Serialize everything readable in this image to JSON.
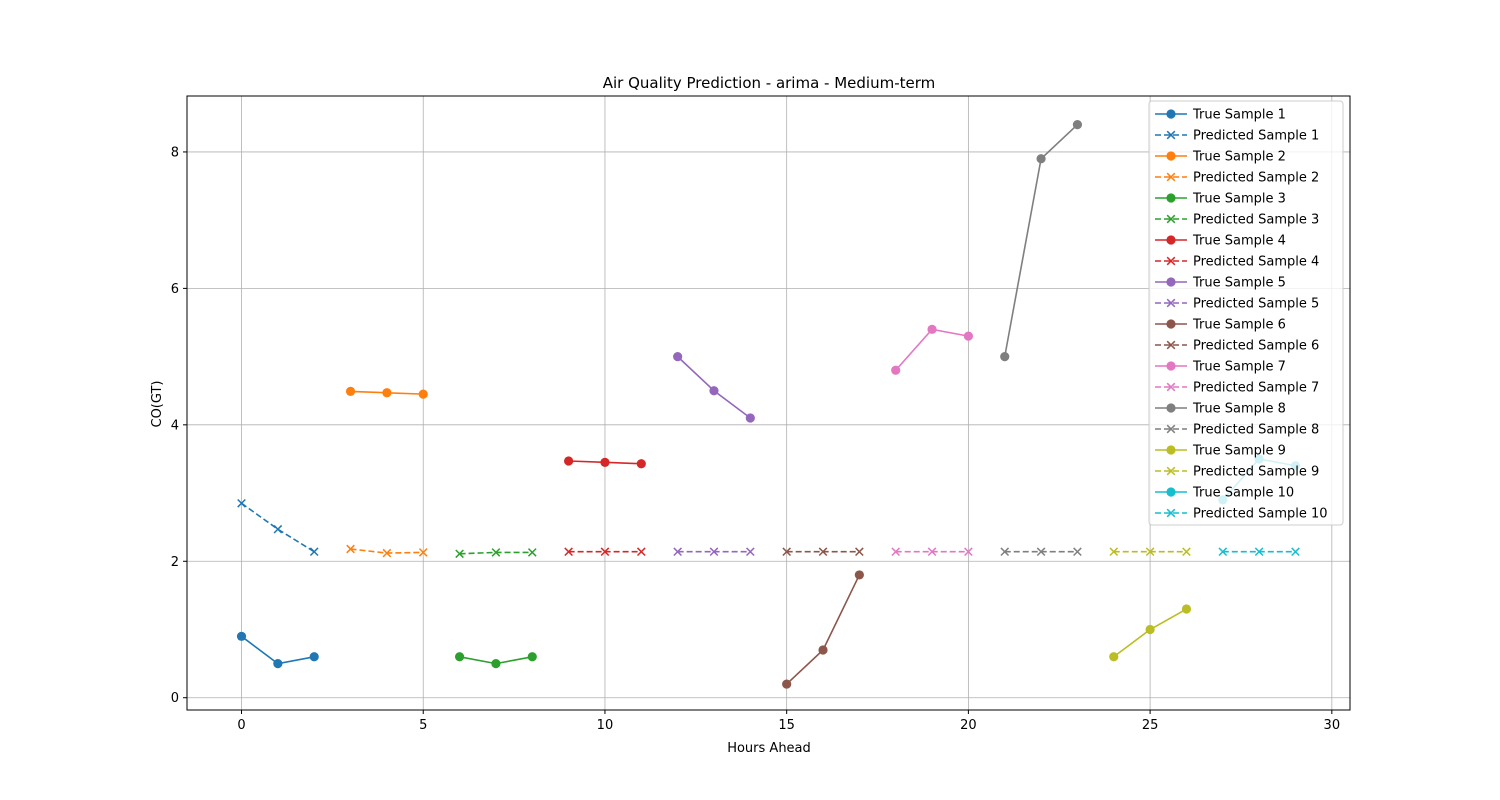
{
  "chart_data": {
    "type": "line",
    "title": "Air Quality Prediction - arima - Medium-term",
    "xlabel": "Hours Ahead",
    "ylabel": "CO(GT)",
    "xlim": [
      -1.5,
      30.5
    ],
    "ylim": [
      -0.18,
      8.82
    ],
    "xticks": [
      0,
      5,
      10,
      15,
      20,
      25,
      30
    ],
    "yticks": [
      0,
      2,
      4,
      6,
      8
    ],
    "grid": true,
    "legend_position": "top-right",
    "series": [
      {
        "name": "True Sample 1",
        "kind": "true",
        "color": "#1f77b4",
        "x": [
          0,
          1,
          2
        ],
        "y": [
          0.9,
          0.5,
          0.6
        ]
      },
      {
        "name": "Predicted Sample 1",
        "kind": "pred",
        "color": "#1f77b4",
        "x": [
          0,
          1,
          2
        ],
        "y": [
          2.85,
          2.47,
          2.14
        ]
      },
      {
        "name": "True Sample 2",
        "kind": "true",
        "color": "#ff7f0e",
        "x": [
          3,
          4,
          5
        ],
        "y": [
          4.49,
          4.47,
          4.45
        ]
      },
      {
        "name": "Predicted Sample 2",
        "kind": "pred",
        "color": "#ff7f0e",
        "x": [
          3,
          4,
          5
        ],
        "y": [
          2.18,
          2.12,
          2.13
        ]
      },
      {
        "name": "True Sample 3",
        "kind": "true",
        "color": "#2ca02c",
        "x": [
          6,
          7,
          8
        ],
        "y": [
          0.6,
          0.5,
          0.6
        ]
      },
      {
        "name": "Predicted Sample 3",
        "kind": "pred",
        "color": "#2ca02c",
        "x": [
          6,
          7,
          8
        ],
        "y": [
          2.11,
          2.13,
          2.13
        ]
      },
      {
        "name": "True Sample 4",
        "kind": "true",
        "color": "#d62728",
        "x": [
          9,
          10,
          11
        ],
        "y": [
          3.47,
          3.45,
          3.43
        ]
      },
      {
        "name": "Predicted Sample 4",
        "kind": "pred",
        "color": "#d62728",
        "x": [
          9,
          10,
          11
        ],
        "y": [
          2.14,
          2.14,
          2.14
        ]
      },
      {
        "name": "True Sample 5",
        "kind": "true",
        "color": "#9467bd",
        "x": [
          12,
          13,
          14
        ],
        "y": [
          5.0,
          4.5,
          4.1
        ]
      },
      {
        "name": "Predicted Sample 5",
        "kind": "pred",
        "color": "#9467bd",
        "x": [
          12,
          13,
          14
        ],
        "y": [
          2.14,
          2.14,
          2.14
        ]
      },
      {
        "name": "True Sample 6",
        "kind": "true",
        "color": "#8c564b",
        "x": [
          15,
          16,
          17
        ],
        "y": [
          0.2,
          0.7,
          1.8
        ]
      },
      {
        "name": "Predicted Sample 6",
        "kind": "pred",
        "color": "#8c564b",
        "x": [
          15,
          16,
          17
        ],
        "y": [
          2.14,
          2.14,
          2.14
        ]
      },
      {
        "name": "True Sample 7",
        "kind": "true",
        "color": "#e377c2",
        "x": [
          18,
          19,
          20
        ],
        "y": [
          4.8,
          5.4,
          5.3
        ]
      },
      {
        "name": "Predicted Sample 7",
        "kind": "pred",
        "color": "#e377c2",
        "x": [
          18,
          19,
          20
        ],
        "y": [
          2.14,
          2.14,
          2.14
        ]
      },
      {
        "name": "True Sample 8",
        "kind": "true",
        "color": "#7f7f7f",
        "x": [
          21,
          22,
          23
        ],
        "y": [
          5.0,
          7.9,
          8.4
        ]
      },
      {
        "name": "Predicted Sample 8",
        "kind": "pred",
        "color": "#7f7f7f",
        "x": [
          21,
          22,
          23
        ],
        "y": [
          2.14,
          2.14,
          2.14
        ]
      },
      {
        "name": "True Sample 9",
        "kind": "true",
        "color": "#bcbd22",
        "x": [
          24,
          25,
          26
        ],
        "y": [
          0.6,
          1.0,
          1.3
        ]
      },
      {
        "name": "Predicted Sample 9",
        "kind": "pred",
        "color": "#bcbd22",
        "x": [
          24,
          25,
          26
        ],
        "y": [
          2.14,
          2.14,
          2.14
        ]
      },
      {
        "name": "True Sample 10",
        "kind": "true",
        "color": "#17becf",
        "x": [
          27,
          28,
          29
        ],
        "y": [
          2.9,
          3.5,
          3.4
        ]
      },
      {
        "name": "Predicted Sample 10",
        "kind": "pred",
        "color": "#17becf",
        "x": [
          27,
          28,
          29
        ],
        "y": [
          2.14,
          2.14,
          2.14
        ]
      }
    ]
  }
}
